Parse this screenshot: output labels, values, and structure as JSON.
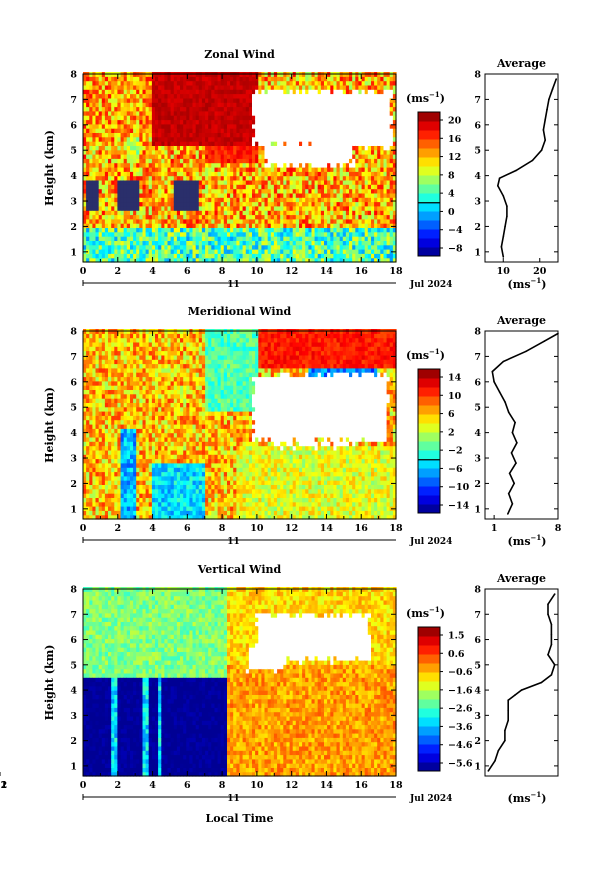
{
  "figure_common": {
    "xlabel": "Local Time",
    "ylabel": "Height (km)",
    "day_label": "11",
    "date_label": "Jul 2024",
    "colorbar_unit_base": "(ms",
    "colorbar_unit_exp": "−1",
    "colorbar_unit_close": ")",
    "avg_unit_base": "(ms",
    "avg_unit_exp": "−1",
    "avg_unit_close": ")"
  },
  "chart_data": [
    {
      "id": "zonal",
      "type": "heatmap",
      "title": "Zonal Wind",
      "colorscale": "jet",
      "colorbar_ticks": [
        "20",
        "16",
        "12",
        "8",
        "4",
        "0",
        "−4",
        "−8"
      ],
      "colorbar_range": [
        -10,
        22
      ],
      "zero_contour": 0,
      "x_range": [
        0,
        18
      ],
      "x_ticks": [
        "0",
        "2",
        "4",
        "6",
        "8",
        "10",
        "12",
        "14",
        "16",
        "18"
      ],
      "y_range": [
        0.6,
        8
      ],
      "y_ticks": [
        "1",
        "2",
        "3",
        "4",
        "5",
        "6",
        "7",
        "8"
      ],
      "average": {
        "title": "Average",
        "xlim": [
          5,
          25
        ],
        "x_ticks": [
          "10",
          "20"
        ],
        "height": [
          0.8,
          1.2,
          1.6,
          2.0,
          2.4,
          2.8,
          3.2,
          3.6,
          3.9,
          4.2,
          4.6,
          5.0,
          5.4,
          5.8,
          6.2,
          6.6,
          7.0,
          7.4,
          7.8
        ],
        "values": [
          10,
          9.5,
          10,
          10.5,
          11,
          11,
          10,
          8.5,
          9,
          13.5,
          18,
          20.5,
          21.5,
          21,
          21.5,
          22,
          22.5,
          23.5,
          24.5
        ]
      }
    },
    {
      "id": "meridional",
      "type": "heatmap",
      "title": "Meridional Wind",
      "colorscale": "jet",
      "colorbar_ticks": [
        "14",
        "10",
        "6",
        "2",
        "−2",
        "−6",
        "−10",
        "−14"
      ],
      "colorbar_range": [
        -16,
        16
      ],
      "zero_contour": 0,
      "x_range": [
        0,
        18
      ],
      "x_ticks": [
        "0",
        "2",
        "4",
        "6",
        "8",
        "10",
        "12",
        "14",
        "16",
        "18"
      ],
      "y_range": [
        0.6,
        8
      ],
      "y_ticks": [
        "1",
        "2",
        "3",
        "4",
        "5",
        "6",
        "7",
        "8"
      ],
      "average": {
        "title": "Average",
        "xlim": [
          0,
          8
        ],
        "x_ticks": [
          "1",
          "8"
        ],
        "height": [
          0.8,
          1.2,
          1.6,
          2.0,
          2.4,
          2.8,
          3.2,
          3.6,
          4.0,
          4.4,
          4.8,
          5.2,
          5.6,
          6.0,
          6.4,
          6.8,
          7.2,
          7.6,
          7.9
        ],
        "values": [
          2.5,
          3.0,
          2.6,
          3.2,
          2.7,
          3.4,
          2.9,
          3.5,
          3.0,
          3.3,
          2.6,
          2.2,
          1.6,
          1.0,
          0.8,
          2.0,
          4.5,
          6.5,
          8.0
        ]
      }
    },
    {
      "id": "vertical",
      "type": "heatmap",
      "title": "Vertical Wind",
      "colorscale": "jet",
      "colorbar_ticks": [
        "1.5",
        "0.6",
        "−0.6",
        "−1.6",
        "−2.6",
        "−3.6",
        "−4.6",
        "−5.6"
      ],
      "colorbar_range": [
        -6,
        2
      ],
      "x_range": [
        0,
        18
      ],
      "x_ticks": [
        "0",
        "2",
        "4",
        "6",
        "8",
        "10",
        "12",
        "14",
        "16",
        "18"
      ],
      "y_range": [
        0.6,
        8
      ],
      "y_ticks": [
        "1",
        "2",
        "3",
        "4",
        "5",
        "6",
        "7",
        "8"
      ],
      "average": {
        "title": "Average",
        "xlim": [
          -3,
          -0.8
        ],
        "x_ticks": [
          "−2",
          "−1"
        ],
        "height": [
          0.8,
          1.2,
          1.6,
          2.0,
          2.4,
          2.8,
          3.2,
          3.6,
          3.8,
          4.0,
          4.3,
          4.6,
          5.0,
          5.4,
          5.8,
          6.2,
          6.6,
          7.0,
          7.4,
          7.8
        ],
        "values": [
          -2.9,
          -2.7,
          -2.6,
          -2.4,
          -2.4,
          -2.3,
          -2.3,
          -2.3,
          -2.1,
          -1.9,
          -1.3,
          -1.0,
          -0.9,
          -1.1,
          -1.0,
          -1.0,
          -1.0,
          -1.1,
          -1.1,
          -0.9
        ]
      }
    }
  ]
}
